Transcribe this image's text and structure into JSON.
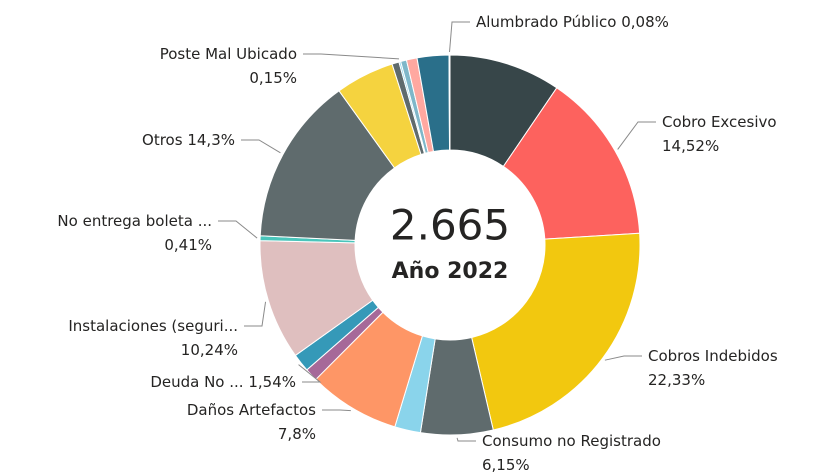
{
  "chart_data": {
    "type": "donut",
    "total": {
      "value": 2665,
      "label": "2.665"
    },
    "subtitle": "Año 2022",
    "categories": [
      null,
      "Cobro Excesivo",
      "Cobros Indebidos",
      "Consumo no Registrado",
      null,
      "Daños Artefactos",
      null,
      "Deuda No ...",
      "Instalaciones (seguri...",
      "No entrega boleta ...",
      "Otros",
      null,
      null,
      "Poste Mal Ubicado",
      null,
      null,
      null,
      "Alumbrado Público"
    ],
    "values": [
      9.5,
      14.52,
      22.33,
      6.15,
      2.2,
      7.8,
      1.1,
      1.54,
      10.24,
      0.41,
      14.3,
      5.0,
      0.6,
      0.15,
      0.5,
      0.9,
      2.7,
      0.08
    ],
    "value_labels": [
      null,
      "14,52%",
      "22,33%",
      "6,15%",
      null,
      "7,8%",
      null,
      "1,54%",
      "10,24%",
      "0,41%",
      "14,3%",
      null,
      null,
      "0,15%",
      null,
      null,
      null,
      "0,08%"
    ],
    "colors": [
      "#374649",
      "#FD625E",
      "#F2C80F",
      "#5F6B6D",
      "#8AD4EB",
      "#FE9666",
      "#A66999",
      "#3599B8",
      "#DFBFBF",
      "#4AC5BB",
      "#5F6B6D",
      "#F5D33F",
      "#5F6B6D",
      "#8AD4EB",
      "#7FB7C9",
      "#FFA8A0",
      "#2A6F8A",
      "#2A6F8A"
    ]
  }
}
